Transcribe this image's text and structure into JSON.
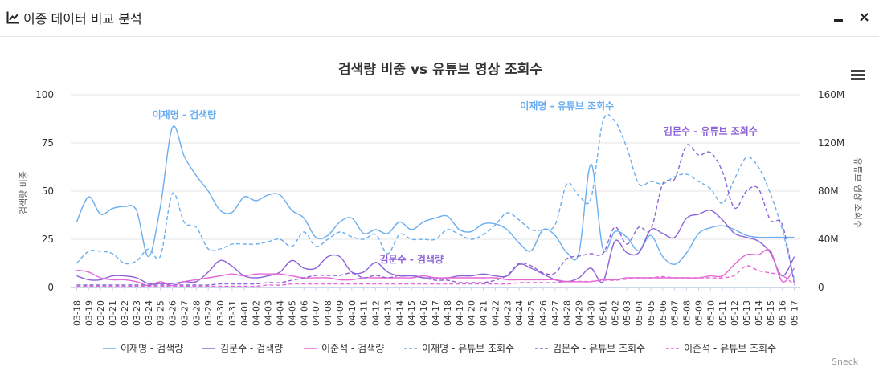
{
  "window": {
    "title": "이종 데이터 비교 분석",
    "title_icon": "line-chart-icon",
    "minimize_icon": "minimize-icon",
    "close_icon": "close-icon",
    "close_glyph": "×"
  },
  "toolbar": {
    "menu_icon": "hamburger-menu-icon",
    "credit": "Sneck"
  },
  "chart_data": {
    "type": "line",
    "title": "검색량 비중 vs 유튜브 영상 조회수",
    "ylabel_left": "검색량 비중",
    "ylabel_right": "유튜브 영상 조회수",
    "ylim_left": [
      0,
      100
    ],
    "ylim_right": [
      0,
      160000000
    ],
    "yticks_left": [
      0,
      25,
      50,
      75,
      100
    ],
    "yticks_left_labels": [
      "0",
      "25",
      "50",
      "75",
      "100"
    ],
    "yticks_right": [
      0,
      40000000,
      80000000,
      120000000,
      160000000
    ],
    "yticks_right_labels": [
      "0",
      "40M",
      "80M",
      "120M",
      "160M"
    ],
    "x": [
      "03-18",
      "03-19",
      "03-20",
      "03-21",
      "03-22",
      "03-23",
      "03-24",
      "03-25",
      "03-26",
      "03-27",
      "03-28",
      "03-29",
      "03-30",
      "03-31",
      "04-01",
      "04-02",
      "04-03",
      "04-04",
      "04-05",
      "04-06",
      "04-07",
      "04-08",
      "04-09",
      "04-10",
      "04-11",
      "04-12",
      "04-13",
      "04-14",
      "04-15",
      "04-16",
      "04-17",
      "04-18",
      "04-19",
      "04-20",
      "04-21",
      "04-22",
      "04-23",
      "04-24",
      "04-25",
      "04-26",
      "04-27",
      "04-28",
      "04-29",
      "04-30",
      "05-01",
      "05-02",
      "05-03",
      "05-04",
      "05-05",
      "05-06",
      "05-07",
      "05-08",
      "05-09",
      "05-10",
      "05-11",
      "05-12",
      "05-13",
      "05-14",
      "05-15",
      "05-16",
      "05-17"
    ],
    "legend_position": "bottom",
    "series": [
      {
        "name": "이재명 - 검색량",
        "axis": "left",
        "color": "#6aaef0",
        "dash": false,
        "values": [
          34,
          47,
          38,
          41,
          42,
          40,
          16,
          42,
          83,
          68,
          58,
          50,
          40,
          39,
          47,
          45,
          48,
          48,
          40,
          36,
          26,
          27,
          34,
          36,
          28,
          30,
          28,
          34,
          30,
          34,
          36,
          37,
          30,
          29,
          33,
          33,
          30,
          23,
          19,
          30,
          27,
          18,
          18,
          64,
          20,
          29,
          26,
          19,
          27,
          16,
          12,
          18,
          28,
          31,
          32,
          30,
          27,
          26,
          26,
          26,
          26
        ]
      },
      {
        "name": "김문수 - 검색량",
        "axis": "left",
        "color": "#8e63d9",
        "dash": false,
        "values": [
          6,
          4,
          4,
          6,
          6,
          5,
          2,
          2,
          2,
          3,
          3,
          8,
          14,
          11,
          6,
          5,
          6,
          8,
          14,
          10,
          10,
          16,
          16,
          8,
          8,
          13,
          8,
          6,
          6,
          5,
          5,
          5,
          6,
          6,
          7,
          6,
          6,
          12,
          10,
          7,
          4,
          3,
          5,
          10,
          3,
          24,
          18,
          18,
          30,
          28,
          26,
          36,
          38,
          40,
          35,
          28,
          26,
          24,
          18,
          6,
          16
        ]
      },
      {
        "name": "이준석 - 검색량",
        "axis": "left",
        "color": "#e568d6",
        "dash": false,
        "values": [
          9,
          8,
          5,
          4,
          4,
          3,
          1,
          3,
          1,
          3,
          4,
          5,
          6,
          7,
          6,
          7,
          7,
          7,
          6,
          5,
          5,
          5,
          4,
          4,
          5,
          5,
          5,
          5,
          5,
          6,
          5,
          5,
          5,
          5,
          5,
          5,
          4,
          4,
          4,
          4,
          4,
          3,
          3,
          3,
          4,
          4,
          5,
          5,
          5,
          5,
          5,
          5,
          5,
          6,
          6,
          12,
          17,
          17,
          19,
          3,
          10
        ]
      },
      {
        "name": "이재명 - 유튜브 조회수",
        "axis": "right",
        "color": "#6aaef0",
        "dash": true,
        "values": [
          20000000,
          30000000,
          30000000,
          28000000,
          20000000,
          22000000,
          32000000,
          26000000,
          78000000,
          54000000,
          50000000,
          32000000,
          32000000,
          36000000,
          36000000,
          36000000,
          38000000,
          40000000,
          34000000,
          46000000,
          34000000,
          40000000,
          46000000,
          42000000,
          40000000,
          44000000,
          28000000,
          44000000,
          40000000,
          40000000,
          40000000,
          48000000,
          44000000,
          40000000,
          44000000,
          52000000,
          62000000,
          56000000,
          48000000,
          48000000,
          52000000,
          86000000,
          76000000,
          74000000,
          138000000,
          138000000,
          116000000,
          86000000,
          88000000,
          86000000,
          92000000,
          94000000,
          88000000,
          82000000,
          70000000,
          90000000,
          108000000,
          100000000,
          78000000,
          48000000,
          6000000
        ]
      },
      {
        "name": "김문수 - 유튜브 조회수",
        "axis": "right",
        "color": "#8e63d9",
        "dash": true,
        "values": [
          2000000,
          2000000,
          2000000,
          2000000,
          2000000,
          2000000,
          2000000,
          2000000,
          2000000,
          2000000,
          2000000,
          2000000,
          3000000,
          3000000,
          3000000,
          3000000,
          4000000,
          4000000,
          6000000,
          8000000,
          10000000,
          10000000,
          10000000,
          12000000,
          8000000,
          10000000,
          8000000,
          10000000,
          10000000,
          8000000,
          6000000,
          6000000,
          4000000,
          4000000,
          4000000,
          6000000,
          10000000,
          20000000,
          18000000,
          12000000,
          12000000,
          24000000,
          26000000,
          28000000,
          28000000,
          50000000,
          36000000,
          50000000,
          48000000,
          86000000,
          90000000,
          118000000,
          110000000,
          112000000,
          96000000,
          66000000,
          80000000,
          82000000,
          56000000,
          52000000,
          3000000
        ]
      },
      {
        "name": "이준석 - 유튜브 조회수",
        "axis": "right",
        "color": "#e568d6",
        "dash": true,
        "values": [
          1000000,
          1000000,
          1000000,
          1000000,
          1000000,
          1000000,
          1000000,
          1000000,
          1000000,
          1000000,
          1000000,
          1000000,
          1000000,
          1000000,
          1000000,
          1000000,
          2000000,
          2000000,
          3000000,
          3000000,
          3000000,
          3000000,
          3000000,
          3000000,
          3000000,
          3000000,
          3000000,
          3000000,
          3000000,
          3000000,
          3000000,
          3000000,
          3000000,
          3000000,
          3000000,
          3000000,
          3000000,
          4000000,
          4000000,
          4000000,
          4000000,
          5000000,
          5000000,
          5000000,
          6000000,
          6000000,
          7000000,
          8000000,
          8000000,
          9000000,
          8000000,
          8000000,
          8000000,
          8000000,
          8000000,
          10000000,
          18000000,
          14000000,
          12000000,
          10000000,
          2000000
        ]
      }
    ],
    "annotations": [
      {
        "text": "이재명 - 검색량",
        "x": "03-27",
        "y": 88,
        "axis": "left",
        "color": "#6aaef0"
      },
      {
        "text": "이재명 - 유튜브 조회수",
        "x": "04-28",
        "y": 148000000,
        "axis": "right",
        "color": "#6aaef0"
      },
      {
        "text": "김문수 - 유튜브 조회수",
        "x": "05-10",
        "y": 127000000,
        "axis": "right",
        "color": "#8e63d9"
      },
      {
        "text": "김문수 - 검색량",
        "x": "04-15",
        "y": 13,
        "axis": "left",
        "color": "#8e63d9"
      }
    ]
  }
}
